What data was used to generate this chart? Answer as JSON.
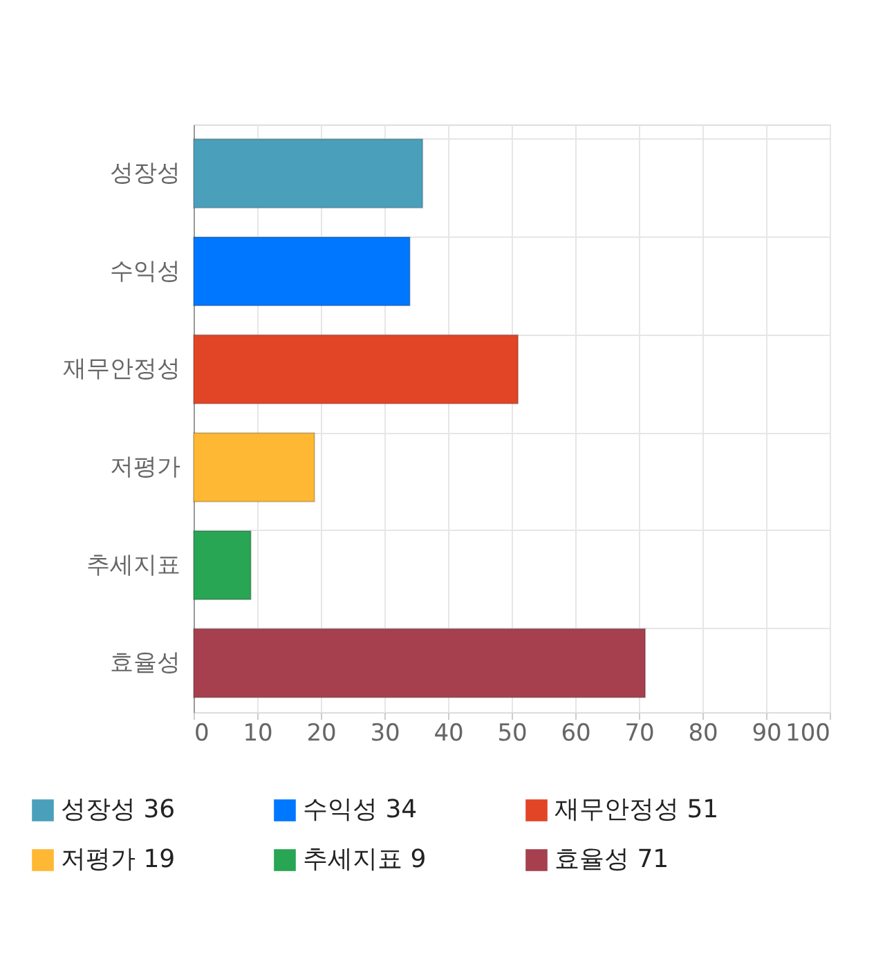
{
  "chart_data": {
    "type": "bar",
    "orientation": "horizontal",
    "categories": [
      "성장성",
      "수익성",
      "재무안정성",
      "저평가",
      "추세지표",
      "효율성"
    ],
    "series": [
      {
        "name": "성장성 36",
        "color": "#4aa0bb",
        "values": [
          36,
          null,
          null,
          null,
          null,
          null
        ]
      },
      {
        "name": "수익성 34",
        "color": "#0077ff",
        "values": [
          null,
          34,
          null,
          null,
          null,
          null
        ]
      },
      {
        "name": "재무안정성 51",
        "color": "#e24526",
        "values": [
          null,
          null,
          51,
          null,
          null,
          null
        ]
      },
      {
        "name": "저평가 19",
        "color": "#ffb833",
        "values": [
          null,
          null,
          null,
          19,
          null,
          null
        ]
      },
      {
        "name": "추세지표 9",
        "color": "#28a653",
        "values": [
          null,
          null,
          null,
          null,
          9,
          null
        ]
      },
      {
        "name": "효율성 71",
        "color": "#a6404f",
        "values": [
          null,
          null,
          null,
          null,
          null,
          71
        ]
      }
    ],
    "xlim": [
      0,
      100
    ],
    "xticks": [
      0,
      10,
      20,
      30,
      40,
      50,
      60,
      70,
      80,
      90,
      100
    ],
    "grid": true,
    "legend": "bottom"
  }
}
